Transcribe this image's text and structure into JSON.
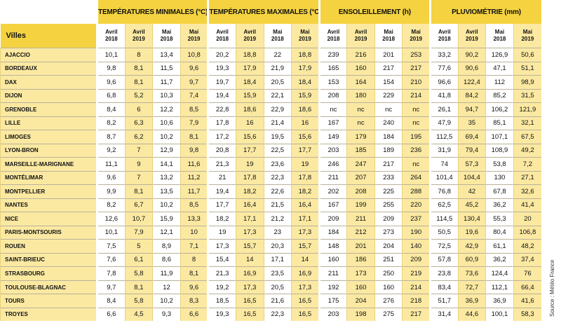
{
  "table": {
    "city_label": "Villes",
    "groups": [
      "TEMPÉRATURES MINIMALES (°C)",
      "TEMPÉRATURES MAXIMALES (°C)",
      "ENSOLEILLEMENT (h)",
      "PLUVIOMÉTRIE (mm)"
    ],
    "subcolumns": [
      {
        "month": "Avril",
        "year": "2018"
      },
      {
        "month": "Avril",
        "year": "2019"
      },
      {
        "month": "Mai",
        "year": "2018"
      },
      {
        "month": "Mai",
        "year": "2019"
      }
    ],
    "rows": [
      {
        "city": "AJACCIO",
        "values": [
          "10,1",
          "8",
          "13,4",
          "10,8",
          "20,2",
          "18,8",
          "22",
          "18,8",
          "239",
          "216",
          "201",
          "253",
          "33,2",
          "90,2",
          "126,9",
          "50,6"
        ]
      },
      {
        "city": "BORDEAUX",
        "values": [
          "9,8",
          "8,1",
          "11,5",
          "9,6",
          "19,3",
          "17,9",
          "21,9",
          "17,9",
          "165",
          "160",
          "217",
          "217",
          "77,6",
          "90,6",
          "47,1",
          "51,1"
        ]
      },
      {
        "city": "DAX",
        "values": [
          "9,6",
          "8,1",
          "11,7",
          "9,7",
          "19,7",
          "18,4",
          "20,5",
          "18,4",
          "153",
          "164",
          "154",
          "210",
          "96,6",
          "122,4",
          "112",
          "98,9"
        ]
      },
      {
        "city": "DIJON",
        "values": [
          "6,8",
          "5,2",
          "10,3",
          "7,4",
          "19,4",
          "15,9",
          "22,1",
          "15,9",
          "208",
          "180",
          "229",
          "214",
          "41,8",
          "84,2",
          "85,2",
          "31,5"
        ]
      },
      {
        "city": "GRENOBLE",
        "values": [
          "8,4",
          "6",
          "12,2",
          "8,5",
          "22,8",
          "18,6",
          "22,9",
          "18,6",
          "nc",
          "nc",
          "nc",
          "nc",
          "26,1",
          "94,7",
          "106,2",
          "121,9"
        ]
      },
      {
        "city": "LILLE",
        "values": [
          "8,2",
          "6,3",
          "10,6",
          "7,9",
          "17,8",
          "16",
          "21,4",
          "16",
          "167",
          "nc",
          "240",
          "nc",
          "47,9",
          "35",
          "85,1",
          "32,1"
        ]
      },
      {
        "city": "LIMOGES",
        "values": [
          "8,7",
          "6,2",
          "10,2",
          "8,1",
          "17,2",
          "15,6",
          "19,5",
          "15,6",
          "149",
          "179",
          "184",
          "195",
          "112,5",
          "69,4",
          "107,1",
          "67,5"
        ]
      },
      {
        "city": "LYON-BRON",
        "values": [
          "9,2",
          "7",
          "12,9",
          "9,8",
          "20,8",
          "17,7",
          "22,5",
          "17,7",
          "203",
          "185",
          "189",
          "236",
          "31,9",
          "79,4",
          "108,9",
          "49,2"
        ]
      },
      {
        "city": "MARSEILLE-MARIGNANE",
        "values": [
          "11,1",
          "9",
          "14,1",
          "11,6",
          "21,3",
          "19",
          "23,6",
          "19",
          "246",
          "247",
          "217",
          "nc",
          "74",
          "57,3",
          "53,8",
          "7,2"
        ]
      },
      {
        "city": "MONTÉLIMAR",
        "values": [
          "9,6",
          "7",
          "13,2",
          "11,2",
          "21",
          "17,8",
          "22,3",
          "17,8",
          "211",
          "207",
          "233",
          "264",
          "101,4",
          "104,4",
          "130",
          "27,1"
        ]
      },
      {
        "city": "MONTPELLIER",
        "values": [
          "9,9",
          "8,1",
          "13,5",
          "11,7",
          "19,4",
          "18,2",
          "22,6",
          "18,2",
          "202",
          "208",
          "225",
          "288",
          "76,8",
          "42",
          "67,8",
          "32,6"
        ]
      },
      {
        "city": "NANTES",
        "values": [
          "8,2",
          "6,7",
          "10,2",
          "8,5",
          "17,7",
          "16,4",
          "21,5",
          "16,4",
          "167",
          "199",
          "255",
          "220",
          "62,5",
          "45,2",
          "36,2",
          "41,4"
        ]
      },
      {
        "city": "NICE",
        "values": [
          "12,6",
          "10,7",
          "15,9",
          "13,3",
          "18,2",
          "17,1",
          "21,2",
          "17,1",
          "209",
          "211",
          "209",
          "237",
          "114,5",
          "130,4",
          "55,3",
          "20"
        ]
      },
      {
        "city": "PARIS-MONTSOURIS",
        "values": [
          "10,1",
          "7,9",
          "12,1",
          "10",
          "19",
          "17,3",
          "23",
          "17,3",
          "184",
          "212",
          "273",
          "190",
          "50,5",
          "19,6",
          "80,4",
          "106,8"
        ]
      },
      {
        "city": "ROUEN",
        "values": [
          "7,5",
          "5",
          "8,9",
          "7,1",
          "17,3",
          "15,7",
          "20,3",
          "15,7",
          "148",
          "201",
          "204",
          "140",
          "72,5",
          "42,9",
          "61,1",
          "48,2"
        ]
      },
      {
        "city": "SAINT-BRIEUC",
        "values": [
          "7,6",
          "6,1",
          "8,6",
          "8",
          "15,4",
          "14",
          "17,1",
          "14",
          "160",
          "186",
          "251",
          "209",
          "57,8",
          "60,9",
          "36,2",
          "37,4"
        ]
      },
      {
        "city": "STRASBOURG",
        "values": [
          "7,8",
          "5,8",
          "11,9",
          "8,1",
          "21,3",
          "16,9",
          "23,5",
          "16,9",
          "211",
          "173",
          "250",
          "219",
          "23,8",
          "73,6",
          "124,4",
          "76"
        ]
      },
      {
        "city": "TOULOUSE-BLAGNAC",
        "values": [
          "9,7",
          "8,1",
          "12",
          "9,6",
          "19,2",
          "17,3",
          "20,5",
          "17,3",
          "192",
          "160",
          "160",
          "214",
          "83,4",
          "72,7",
          "112,1",
          "66,4"
        ]
      },
      {
        "city": "TOURS",
        "values": [
          "8,4",
          "5,8",
          "10,2",
          "8,3",
          "18,5",
          "16,5",
          "21,6",
          "16,5",
          "175",
          "204",
          "276",
          "218",
          "51,7",
          "36,9",
          "36,9",
          "41,6"
        ]
      },
      {
        "city": "TROYES",
        "values": [
          "6,6",
          "4,5",
          "9,3",
          "6,6",
          "19,3",
          "16,5",
          "22,3",
          "16,5",
          "203",
          "198",
          "275",
          "217",
          "31,4",
          "44,6",
          "100,1",
          "58,3"
        ]
      }
    ],
    "source": "Source : Météo France"
  }
}
